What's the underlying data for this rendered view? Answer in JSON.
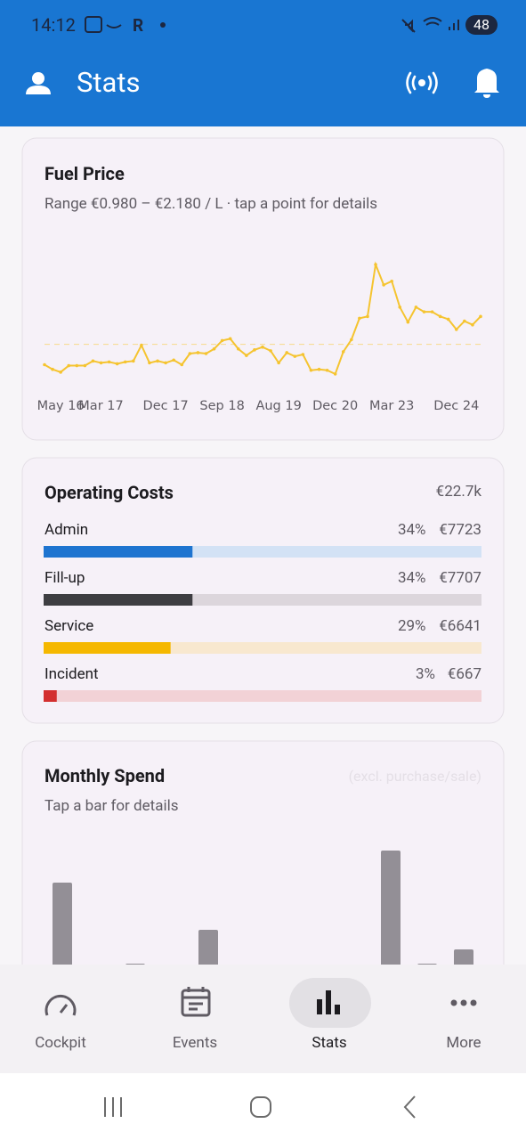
{
  "status_bar": {
    "time": "14:12",
    "carrier": "R",
    "battery": "48"
  },
  "app_bar": {
    "title": "Stats"
  },
  "fuel_card": {
    "title": "Fuel Price",
    "subtitle": "Range €0.980 – €2.180 / L · tap a point for details",
    "chart_data": {
      "type": "line",
      "color": "#f5c430",
      "values": [
        1.1,
        1.05,
        1.02,
        1.09,
        1.09,
        1.09,
        1.14,
        1.12,
        1.13,
        1.11,
        1.13,
        1.14,
        1.31,
        1.12,
        1.14,
        1.12,
        1.15,
        1.1,
        1.22,
        1.23,
        1.22,
        1.27,
        1.36,
        1.38,
        1.27,
        1.2,
        1.26,
        1.29,
        1.25,
        1.12,
        1.23,
        1.19,
        1.21,
        1.04,
        1.05,
        1.04,
        1.0,
        1.24,
        1.37,
        1.6,
        1.62,
        2.18,
        1.96,
        2.0,
        1.72,
        1.56,
        1.72,
        1.67,
        1.67,
        1.62,
        1.59,
        1.48,
        1.57,
        1.53,
        1.62
      ],
      "ylim": [
        0.98,
        2.18
      ],
      "reference_line": 1.32,
      "xticks": [
        {
          "value": 2,
          "label": "May 16"
        },
        {
          "value": 7,
          "label": "Mar 17"
        },
        {
          "value": 15,
          "label": "Dec 17"
        },
        {
          "value": 22,
          "label": "Sep 18"
        },
        {
          "value": 29,
          "label": "Aug 19"
        },
        {
          "value": 36,
          "label": "Dec 20"
        },
        {
          "value": 43,
          "label": "Mar 23"
        },
        {
          "value": 51,
          "label": "Dec 24"
        }
      ]
    }
  },
  "costs_card": {
    "title": "Operating Costs",
    "total": "€22.7k",
    "items": [
      {
        "name": "Admin",
        "percent": 34,
        "percent_label": "34%",
        "amount": 7723,
        "amount_label": "€7723",
        "color": "#1e74d0",
        "track_color": "#d3e2f5"
      },
      {
        "name": "Fill-up",
        "percent": 34,
        "percent_label": "34%",
        "amount": 7707,
        "amount_label": "€7707",
        "color": "#3e3e42",
        "track_color": "#dcd6dc"
      },
      {
        "name": "Service",
        "percent": 29,
        "percent_label": "29%",
        "amount": 6641,
        "amount_label": "€6641",
        "color": "#f5b800",
        "track_color": "#f8e8cf"
      },
      {
        "name": "Incident",
        "percent": 3,
        "percent_label": "3%",
        "amount": 667,
        "amount_label": "€667",
        "color": "#d32f2f",
        "track_color": "#f2d2d6"
      }
    ]
  },
  "spend_card": {
    "title": "Monthly Spend",
    "note": "(excl. purchase/sale)",
    "subtitle": "Tap a bar for details",
    "chart_data": {
      "type": "bar",
      "color": "#938f96",
      "values": [
        745,
        0,
        290,
        0,
        480,
        0,
        0,
        0,
        0,
        925,
        290,
        370
      ],
      "ylim": [
        0,
        1000
      ]
    }
  },
  "nav": {
    "items": [
      "Cockpit",
      "Events",
      "Stats",
      "More"
    ],
    "selected": 2
  }
}
